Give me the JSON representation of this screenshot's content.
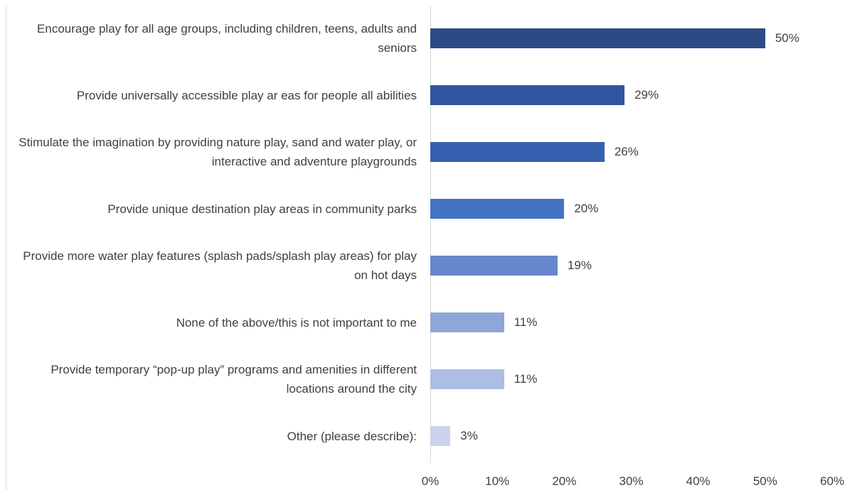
{
  "chart_data": {
    "type": "bar",
    "orientation": "horizontal",
    "categories": [
      "Encourage play for all age groups, including children, teens, adults and seniors",
      "Provide universally accessible play ar eas for people all abilities",
      "Stimulate the imagination by providing nature play, sand and water play, or interactive and adventure playgrounds",
      "Provide unique destination play areas in community parks",
      "Provide more water play features (splash pads/splash play areas) for play on hot days",
      "None of the above/this is not important to me",
      "Provide temporary “pop-up play” programs and amenities in different locations around the city",
      "Other (please describe):"
    ],
    "values": [
      50,
      29,
      26,
      20,
      19,
      11,
      11,
      3
    ],
    "value_labels": [
      "50%",
      "29%",
      "26%",
      "20%",
      "19%",
      "11%",
      "11%",
      "3%"
    ],
    "bar_colors": [
      "#2e4a86",
      "#2f54a0",
      "#3660b0",
      "#4472c4",
      "#6687cc",
      "#8fa6d8",
      "#adbde3",
      "#c9d3ed"
    ],
    "xlim": [
      0,
      60
    ],
    "xticks": [
      0,
      10,
      20,
      30,
      40,
      50,
      60
    ],
    "xtick_labels": [
      "0%",
      "10%",
      "20%",
      "30%",
      "40%",
      "50%",
      "60%"
    ],
    "title": "",
    "xlabel": "",
    "ylabel": "",
    "grid": false,
    "legend": false
  }
}
